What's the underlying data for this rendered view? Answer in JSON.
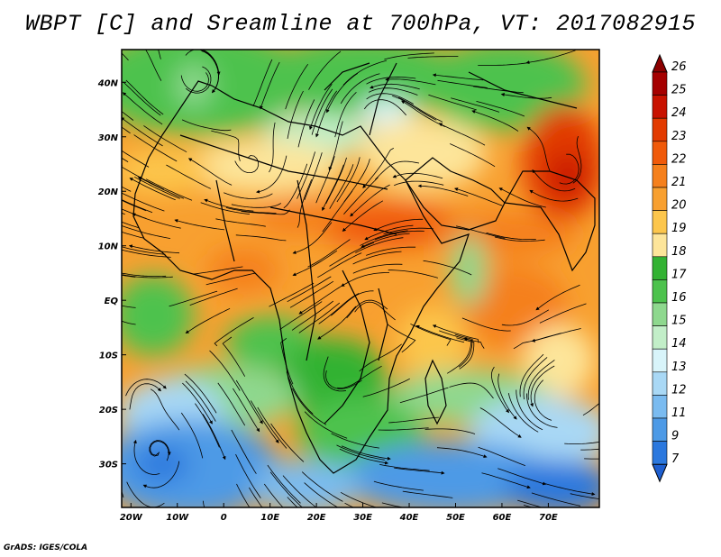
{
  "title": "WBPT [C] and Sreamline at 700hPa, VT: 2017082915",
  "credit": "GrADS: IGES/COLA",
  "map": {
    "lon_range": [
      -22,
      81
    ],
    "lat_range": [
      -38,
      46
    ],
    "lon_ticks": [
      {
        "value": -20,
        "label": "20W"
      },
      {
        "value": -10,
        "label": "10W"
      },
      {
        "value": 0,
        "label": "0"
      },
      {
        "value": 10,
        "label": "10E"
      },
      {
        "value": 20,
        "label": "20E"
      },
      {
        "value": 30,
        "label": "30E"
      },
      {
        "value": 40,
        "label": "40E"
      },
      {
        "value": 50,
        "label": "50E"
      },
      {
        "value": 60,
        "label": "60E"
      },
      {
        "value": 70,
        "label": "70E"
      }
    ],
    "lat_ticks": [
      {
        "value": 40,
        "label": "40N"
      },
      {
        "value": 30,
        "label": "30N"
      },
      {
        "value": 20,
        "label": "20N"
      },
      {
        "value": 10,
        "label": "10N"
      },
      {
        "value": 0,
        "label": "EQ"
      },
      {
        "value": -10,
        "label": "10S"
      },
      {
        "value": -20,
        "label": "20S"
      },
      {
        "value": -30,
        "label": "30S"
      }
    ]
  },
  "colorbar": {
    "labels": [
      "26",
      "25",
      "24",
      "23",
      "22",
      "21",
      "20",
      "19",
      "18",
      "17",
      "16",
      "15",
      "14",
      "13",
      "12",
      "11",
      "9",
      "7"
    ],
    "colors": [
      "#a50000",
      "#c81200",
      "#e23a00",
      "#f05a0a",
      "#f5801c",
      "#f8a030",
      "#fcc64c",
      "#fde59a",
      "#33b233",
      "#4dc24d",
      "#8ed88e",
      "#c2eec8",
      "#d8f4fa",
      "#a9d8f5",
      "#7abbf0",
      "#4d9ae6",
      "#2b78de"
    ],
    "top_arrow_color": "#8c0000",
    "bottom_arrow_color": "#1e5fd0"
  }
}
